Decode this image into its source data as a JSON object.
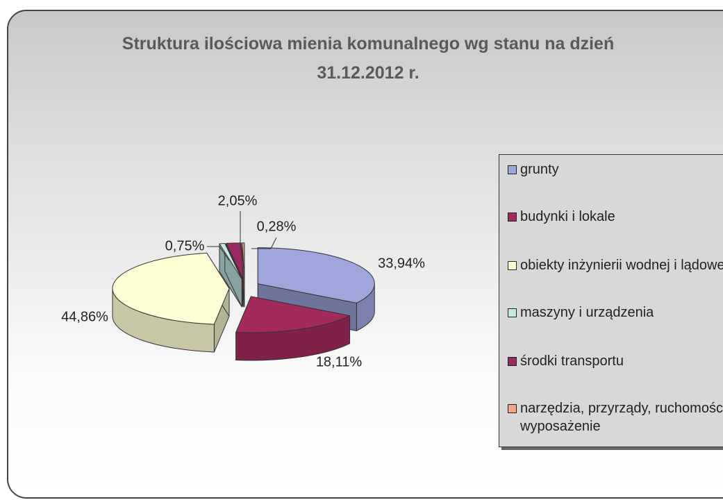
{
  "chart_data": {
    "type": "pie",
    "title": "Struktura ilościowa mienia komunalnego wg stanu na dzień 31.12.2012 r.",
    "categories": [
      "grunty",
      "budynki i lokale",
      "obiekty inżynierii wodnej i lądowej",
      "maszyny i urządzenia",
      "środki transportu",
      "narzędzia, przyrządy, ruchomości i wyposażenie"
    ],
    "values": [
      33.94,
      18.11,
      44.86,
      0.75,
      2.05,
      0.28
    ],
    "value_labels": [
      "33,94%",
      "18,11%",
      "44,86%",
      "0,75%",
      "2,05%",
      "0,28%"
    ],
    "colors": [
      "#9ea6dc",
      "#a32a5c",
      "#ffffd6",
      "#c4e8e6",
      "#9a2a62",
      "#f2a68a"
    ],
    "legend": "right"
  }
}
